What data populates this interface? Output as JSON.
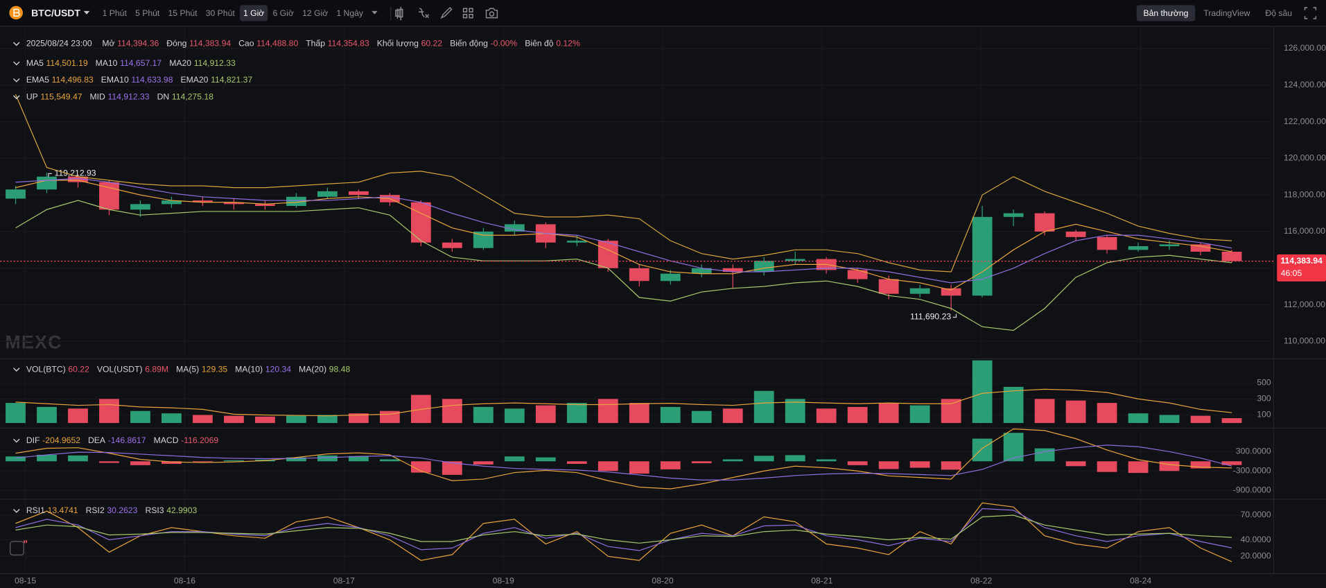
{
  "toolbar": {
    "symbol": "BTC/USDT",
    "intervals": [
      {
        "label": "1 Phút"
      },
      {
        "label": "5 Phút"
      },
      {
        "label": "15 Phút"
      },
      {
        "label": "30 Phút"
      },
      {
        "label": "1 Giờ",
        "active": true
      },
      {
        "label": "6 Giờ"
      },
      {
        "label": "12 Giờ"
      },
      {
        "label": "1 Ngày"
      }
    ],
    "views": [
      {
        "label": "Bản thường",
        "active": true
      },
      {
        "label": "TradingView"
      },
      {
        "label": "Độ sâu"
      }
    ]
  },
  "watermark": "MEXC",
  "time_axis": [
    "08-15",
    "08-16",
    "08-17",
    "08-19",
    "08-20",
    "08-21",
    "08-22",
    "08-24"
  ],
  "chart_data": [
    {
      "type": "candlestick",
      "up_color": "#2b9e76",
      "down_color": "#e64a5f",
      "grid": true,
      "ylim": [
        109100,
        126800
      ],
      "yticks": [
        {
          "value": 110000,
          "label": "110,000.00"
        },
        {
          "value": 112000,
          "label": "112,000.00"
        },
        {
          "value": 114000,
          "label": "114,000.00"
        },
        {
          "value": 116000,
          "label": "116,000.00"
        },
        {
          "value": 118000,
          "label": "118,000.00"
        },
        {
          "value": 120000,
          "label": "120,000.00"
        },
        {
          "value": 122000,
          "label": "122,000.00"
        },
        {
          "value": 124000,
          "label": "124,000.00"
        },
        {
          "value": 126000,
          "label": "126,000.00"
        }
      ],
      "open": [
        117800,
        118300,
        119000,
        118700,
        117200,
        117500,
        117700,
        117600,
        117500,
        117400,
        117900,
        118200,
        118000,
        117600,
        115400,
        115100,
        116000,
        116400,
        115400,
        115500,
        114000,
        113300,
        113700,
        114000,
        113800,
        114400,
        114500,
        113900,
        113400,
        112600,
        112900,
        112500,
        116800,
        117000,
        116000,
        115700,
        115000,
        115200,
        115300,
        114900
      ],
      "high": [
        118500,
        119212.93,
        119100,
        118800,
        117700,
        117900,
        117900,
        117800,
        117700,
        118100,
        118400,
        118300,
        118100,
        117700,
        115600,
        116200,
        116600,
        116500,
        115800,
        115600,
        114200,
        113900,
        114200,
        114200,
        114600,
        114900,
        114600,
        114000,
        113600,
        113100,
        113100,
        117400,
        117200,
        117100,
        116100,
        115800,
        115400,
        115500,
        115400,
        115000
      ],
      "low": [
        117500,
        118100,
        118400,
        116900,
        116800,
        117300,
        117400,
        117200,
        117200,
        117300,
        117800,
        117800,
        117400,
        115200,
        114900,
        115000,
        115800,
        115100,
        115200,
        113800,
        113000,
        113100,
        113500,
        112900,
        113600,
        114200,
        113700,
        113200,
        112300,
        112400,
        111690.23,
        112400,
        116300,
        115800,
        115500,
        114800,
        114900,
        115000,
        114700,
        114300
      ],
      "close": [
        118300,
        119000,
        118700,
        117200,
        117500,
        117700,
        117600,
        117500,
        117400,
        117900,
        118200,
        118000,
        117600,
        115400,
        115100,
        116000,
        116400,
        115400,
        115500,
        114000,
        113300,
        113700,
        114000,
        113800,
        114400,
        114500,
        113900,
        113400,
        112600,
        112900,
        112500,
        116800,
        117000,
        116000,
        115700,
        115000,
        115200,
        115300,
        114900,
        114383.94
      ],
      "lines": [
        {
          "color": "#d7a43b",
          "values": [
            123500,
            119500,
            119000,
            118800,
            118600,
            118500,
            118500,
            118400,
            118400,
            118500,
            118600,
            118700,
            119200,
            119300,
            119000,
            118000,
            117000,
            116800,
            116800,
            116900,
            116700,
            115500,
            114800,
            114500,
            114700,
            115000,
            115000,
            114800,
            114300,
            113900,
            113800,
            118000,
            119000,
            118200,
            117600,
            117000,
            116300,
            115900,
            115600,
            115500
          ]
        },
        {
          "color": "#a8c96b",
          "values": [
            116200,
            117200,
            117700,
            117200,
            116900,
            117000,
            117100,
            117100,
            117100,
            117100,
            117200,
            117300,
            116900,
            115500,
            114600,
            114400,
            114400,
            114400,
            114500,
            114000,
            112400,
            112200,
            112700,
            112900,
            113000,
            113200,
            113300,
            113000,
            112500,
            112300,
            111800,
            110800,
            110600,
            111800,
            113500,
            114300,
            114600,
            114700,
            114500,
            114300
          ]
        },
        {
          "color": "#e8a33d",
          "values": [
            118400,
            118800,
            118800,
            118400,
            118000,
            117700,
            117600,
            117600,
            117500,
            117600,
            117800,
            117900,
            117800,
            117000,
            116200,
            115800,
            115800,
            115900,
            115700,
            115000,
            114200,
            113800,
            113700,
            113700,
            114000,
            114200,
            114200,
            113900,
            113400,
            113200,
            112800,
            113800,
            115000,
            116000,
            116400,
            116000,
            115600,
            115400,
            115200,
            114900
          ]
        },
        {
          "color": "#8e6ee0",
          "values": [
            118700,
            118800,
            118900,
            118700,
            118400,
            118100,
            117900,
            117800,
            117700,
            117700,
            117700,
            117800,
            117900,
            117600,
            117000,
            116500,
            116100,
            115900,
            115800,
            115400,
            114900,
            114400,
            114000,
            113800,
            113800,
            113900,
            114000,
            114000,
            113800,
            113500,
            113200,
            113400,
            114000,
            114800,
            115500,
            115800,
            115800,
            115600,
            115400,
            115100
          ]
        }
      ],
      "max_marker": {
        "value": 119212.93,
        "label": "119,212.93"
      },
      "min_marker": {
        "value": 111690.23,
        "label": "111,690.23"
      },
      "last_price": {
        "value": 114383.94,
        "label": "114,383.94"
      },
      "countdown": "46:05",
      "legend": [
        {
          "items": [
            {
              "label": "2025/08/24 23:00"
            },
            {
              "label": "Mở",
              "value": "114,394.36",
              "color": "#e8586d"
            },
            {
              "label": "Đóng",
              "value": "114,383.94",
              "color": "#e8586d"
            },
            {
              "label": "Cao",
              "value": "114,488.80",
              "color": "#e8586d"
            },
            {
              "label": "Thấp",
              "value": "114,354.83",
              "color": "#e8586d"
            },
            {
              "label": "Khối lượng",
              "value": "60.22",
              "color": "#e8586d"
            },
            {
              "label": "Biến động",
              "value": "-0.00%",
              "color": "#e8586d"
            },
            {
              "label": "Biên độ",
              "value": "0.12%",
              "color": "#e8586d"
            }
          ]
        },
        {
          "items": [
            {
              "label": "MA5",
              "value": "114,501.19",
              "color": "#e8a33d"
            },
            {
              "label": "MA10",
              "value": "114,657.17",
              "color": "#9d71ea"
            },
            {
              "label": "MA20",
              "value": "114,912.33",
              "color": "#a8c96b"
            }
          ]
        },
        {
          "items": [
            {
              "label": "EMA5",
              "value": "114,496.83",
              "color": "#e8a33d"
            },
            {
              "label": "EMA10",
              "value": "114,633.98",
              "color": "#9d71ea"
            },
            {
              "label": "EMA20",
              "value": "114,821.37",
              "color": "#a8c96b"
            }
          ]
        },
        {
          "items": [
            {
              "label": "UP",
              "value": "115,549.47",
              "color": "#e8a33d"
            },
            {
              "label": "MID",
              "value": "114,912.33",
              "color": "#9d71ea"
            },
            {
              "label": "DN",
              "value": "114,275.18",
              "color": "#a8c96b"
            }
          ]
        }
      ]
    },
    {
      "type": "volume",
      "ylim": [
        0,
        790
      ],
      "yticks": [
        100,
        300,
        500
      ],
      "values": [
        250,
        200,
        180,
        300,
        150,
        120,
        100,
        90,
        80,
        90,
        100,
        120,
        150,
        350,
        300,
        200,
        180,
        220,
        250,
        300,
        250,
        200,
        150,
        180,
        400,
        300,
        180,
        200,
        250,
        220,
        300,
        780,
        450,
        300,
        280,
        250,
        120,
        100,
        90,
        60.22
      ],
      "lines": [
        {
          "color": "#e8a33d",
          "values": [
            260,
            240,
            220,
            230,
            200,
            190,
            170,
            110,
            100,
            95,
            90,
            100,
            110,
            170,
            220,
            240,
            250,
            240,
            230,
            230,
            240,
            245,
            230,
            220,
            250,
            260,
            250,
            240,
            250,
            240,
            240,
            370,
            400,
            420,
            410,
            380,
            300,
            250,
            170,
            129.35
          ]
        }
      ],
      "legend": [
        {
          "items": [
            {
              "label": "VOL(BTC)",
              "value": "60.22",
              "color": "#e8586d"
            },
            {
              "label": "VOL(USDT)",
              "value": "6.89M",
              "color": "#e8586d"
            },
            {
              "label": "MA(5)",
              "value": "129.35",
              "color": "#e8a33d"
            },
            {
              "label": "MA(10)",
              "value": "120.34",
              "color": "#9d71ea"
            },
            {
              "label": "MA(20)",
              "value": "98.48",
              "color": "#a8c96b"
            }
          ]
        }
      ]
    },
    {
      "type": "histogram",
      "ylim": [
        -1170,
        1000
      ],
      "yticks": [
        {
          "value": 300,
          "label": "300.0000"
        },
        {
          "value": -300,
          "label": "-300.0000"
        },
        {
          "value": -900,
          "label": "-900.0000"
        }
      ],
      "values": [
        150,
        200,
        180,
        -50,
        -120,
        -80,
        -20,
        30,
        50,
        120,
        180,
        160,
        60,
        -350,
        -420,
        -100,
        150,
        120,
        -80,
        -300,
        -380,
        -250,
        -60,
        60,
        170,
        190,
        60,
        -120,
        -240,
        -200,
        -260,
        700,
        880,
        400,
        -150,
        -330,
        -360,
        -300,
        -220,
        -116.2069
      ],
      "lines": [
        {
          "color": "#e8a33d",
          "values": [
            250,
            400,
            420,
            250,
            60,
            -20,
            -40,
            -20,
            20,
            120,
            230,
            260,
            200,
            -300,
            -600,
            -550,
            -350,
            -280,
            -350,
            -600,
            -800,
            -850,
            -700,
            -500,
            -300,
            -150,
            -200,
            -300,
            -450,
            -500,
            -550,
            400,
            1000,
            950,
            700,
            350,
            50,
            -100,
            -180,
            -204.9652
          ]
        },
        {
          "color": "#8e6ee0",
          "values": [
            100,
            200,
            280,
            270,
            220,
            170,
            120,
            90,
            80,
            90,
            110,
            150,
            170,
            100,
            -50,
            -150,
            -220,
            -250,
            -270,
            -330,
            -420,
            -520,
            -580,
            -580,
            -520,
            -440,
            -390,
            -370,
            -380,
            -410,
            -440,
            -250,
            100,
            300,
            420,
            500,
            450,
            300,
            100,
            -146.8617
          ]
        }
      ],
      "legend": [
        {
          "items": [
            {
              "label": "DIF",
              "value": "-204.9652",
              "color": "#e8a33d"
            },
            {
              "label": "DEA",
              "value": "-146.8617",
              "color": "#9d71ea"
            },
            {
              "label": "MACD",
              "value": "-116.2069",
              "color": "#e8586d"
            }
          ]
        }
      ]
    },
    {
      "type": "line",
      "ylim": [
        0,
        88.5
      ],
      "yticks": [
        {
          "value": 70,
          "label": "70.0000"
        },
        {
          "value": 40,
          "label": "40.0000"
        },
        {
          "value": 20,
          "label": "20.0000"
        }
      ],
      "lines": [
        {
          "color": "#e8a33d",
          "values": [
            60,
            75,
            55,
            25,
            45,
            55,
            50,
            45,
            42,
            62,
            68,
            55,
            40,
            15,
            22,
            60,
            65,
            35,
            50,
            20,
            15,
            48,
            58,
            45,
            68,
            62,
            35,
            30,
            22,
            50,
            35,
            85,
            80,
            45,
            35,
            30,
            50,
            55,
            30,
            13.4741
          ]
        },
        {
          "color": "#8e6ee0",
          "values": [
            55,
            65,
            58,
            40,
            45,
            50,
            50,
            47,
            45,
            55,
            60,
            55,
            45,
            28,
            30,
            48,
            55,
            42,
            48,
            32,
            27,
            40,
            48,
            45,
            57,
            58,
            45,
            40,
            33,
            42,
            38,
            78,
            76,
            55,
            45,
            38,
            45,
            48,
            38,
            30.2623
          ]
        },
        {
          "color": "#a8c96b",
          "values": [
            52,
            58,
            56,
            46,
            47,
            49,
            49,
            48,
            47,
            51,
            55,
            54,
            48,
            38,
            38,
            46,
            50,
            45,
            47,
            40,
            36,
            40,
            45,
            44,
            50,
            52,
            47,
            44,
            40,
            43,
            41,
            68,
            70,
            58,
            52,
            46,
            47,
            48,
            45,
            42.9903
          ]
        }
      ],
      "legend": [
        {
          "items": [
            {
              "label": "RSI1",
              "value": "13.4741",
              "color": "#e8a33d"
            },
            {
              "label": "RSI2",
              "value": "30.2623",
              "color": "#9d71ea"
            },
            {
              "label": "RSI3",
              "value": "42.9903",
              "color": "#a8c96b"
            }
          ]
        }
      ]
    }
  ]
}
